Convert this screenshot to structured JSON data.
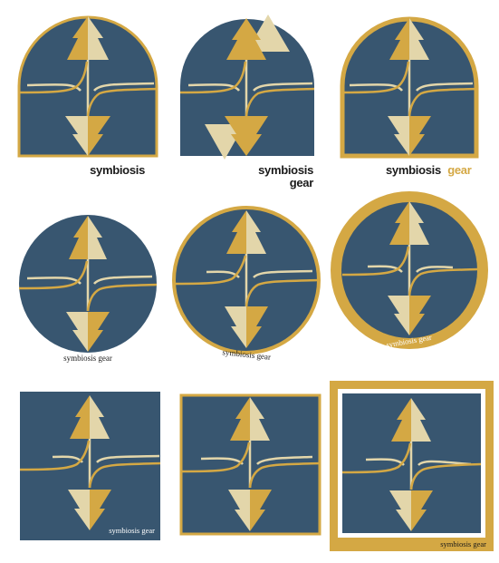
{
  "colors": {
    "navy": "#385670",
    "gold": "#d4a844",
    "cream": "#e3d6aa",
    "text": "#1a1a1a",
    "background": "#ffffff"
  },
  "logos": [
    {
      "id": "arch-plain",
      "shape": "arch",
      "border": "none",
      "label_parts": [
        "symbiosis"
      ]
    },
    {
      "id": "arch-offset",
      "shape": "arch",
      "border": "none",
      "label_parts": [
        "symbiosis",
        "gear"
      ]
    },
    {
      "id": "arch-bordered",
      "shape": "arch",
      "border": "gold",
      "label_parts": [
        "symbiosis",
        "gear"
      ]
    },
    {
      "id": "circle-plain",
      "shape": "circle",
      "border": "none",
      "label_parts": [
        "symbiosis gear"
      ]
    },
    {
      "id": "circle-thin-ring",
      "shape": "circle",
      "border": "gold-thin",
      "label_parts": [
        "symbiosis gear"
      ]
    },
    {
      "id": "circle-thick-ring",
      "shape": "circle",
      "border": "gold-thick",
      "label_parts": [
        "symbiosis gear"
      ]
    },
    {
      "id": "square-plain",
      "shape": "square",
      "border": "none",
      "label_parts": [
        "symbiosis gear"
      ]
    },
    {
      "id": "square-thin-border",
      "shape": "square",
      "border": "gold-thin",
      "label_parts": []
    },
    {
      "id": "square-framed",
      "shape": "square",
      "border": "gold-frame",
      "label_parts": [
        "symbiosis gear"
      ]
    }
  ]
}
